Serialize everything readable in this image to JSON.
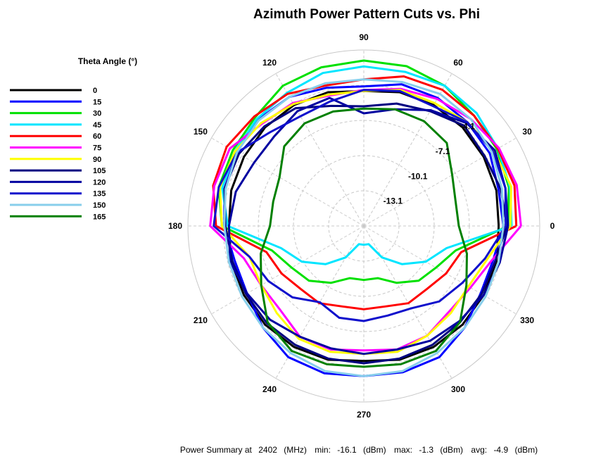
{
  "chart_data": {
    "type": "polar-line",
    "title": "Azimuth Power Pattern Cuts vs. Phi",
    "angle_unit": "degrees",
    "angle_ticks": [
      0,
      30,
      60,
      90,
      120,
      150,
      180,
      210,
      240,
      270,
      300,
      330
    ],
    "angle_tick_labels": [
      "0",
      "30",
      "60",
      "90",
      "120",
      "150",
      "180",
      "210",
      "240",
      "270",
      "300",
      "330"
    ],
    "radial_min_dbm": -16.1,
    "radial_max_dbm": -1.1,
    "radial_ticks": [
      -13.1,
      -10.1,
      -7.1,
      -4.1
    ],
    "radial_tick_labels": [
      "-13.1",
      "-10.1",
      "-7.1",
      "-4.1"
    ],
    "legend_title": "Theta Angle (°)",
    "legend_position": "left",
    "phi": [
      0,
      15,
      30,
      45,
      60,
      75,
      90,
      105,
      120,
      135,
      150,
      165,
      180,
      195,
      210,
      225,
      240,
      255,
      270,
      285,
      300,
      315,
      330,
      345
    ],
    "series": [
      {
        "name": "0",
        "color": "#000000",
        "values": [
          -4.6,
          -4.4,
          -4.3,
          -4.2,
          -4.2,
          -4.3,
          -4.6,
          -4.3,
          -4.2,
          -4.2,
          -4.3,
          -4.4,
          -4.6,
          -4.4,
          -4.3,
          -4.2,
          -4.2,
          -4.3,
          -4.6,
          -4.3,
          -4.2,
          -4.2,
          -4.3,
          -4.4
        ]
      },
      {
        "name": "15",
        "color": "#0000ff",
        "values": [
          -4.2,
          -4.2,
          -3.7,
          -3.6,
          -3.5,
          -3.6,
          -4.2,
          -3.9,
          -3.4,
          -3.3,
          -3.6,
          -3.8,
          -4.2,
          -4.7,
          -4.6,
          -3.9,
          -3.2,
          -3.1,
          -3.3,
          -3.2,
          -3.2,
          -3.9,
          -4.6,
          -4.7
        ]
      },
      {
        "name": "30",
        "color": "#00e000",
        "values": [
          -3.8,
          -3.3,
          -3.0,
          -2.8,
          -2.3,
          -2.0,
          -2.0,
          -2.1,
          -2.3,
          -3.0,
          -3.2,
          -3.3,
          -4.0,
          -8.0,
          -9.0,
          -9.5,
          -10.5,
          -11.5,
          -11.5,
          -11.5,
          -10.5,
          -9.5,
          -9.0,
          -8.0
        ]
      },
      {
        "name": "45",
        "color": "#00e5ff",
        "values": [
          -3.5,
          -3.2,
          -2.9,
          -2.5,
          -2.3,
          -2.5,
          -2.5,
          -2.6,
          -3.0,
          -3.2,
          -3.4,
          -3.6,
          -4.5,
          -8.8,
          -10.0,
          -11.5,
          -13.0,
          -14.5,
          -14.5,
          -14.5,
          -13.0,
          -11.5,
          -10.0,
          -8.8
        ]
      },
      {
        "name": "60",
        "color": "#ff0000",
        "values": [
          -3.1,
          -2.8,
          -2.9,
          -2.8,
          -2.7,
          -2.9,
          -3.6,
          -3.7,
          -3.1,
          -2.9,
          -2.6,
          -2.8,
          -3.5,
          -7.5,
          -8.0,
          -8.5,
          -8.5,
          -9.0,
          -9.0,
          -9.0,
          -8.5,
          -8.5,
          -8.0,
          -7.5
        ]
      },
      {
        "name": "75",
        "color": "#ff00ff",
        "values": [
          -2.7,
          -2.6,
          -2.8,
          -3.2,
          -3.6,
          -4.0,
          -4.5,
          -4.6,
          -4.0,
          -3.8,
          -2.9,
          -2.9,
          -3.0,
          -5.5,
          -6.0,
          -6.0,
          -5.2,
          -5.2,
          -5.5,
          -5.2,
          -5.3,
          -5.8,
          -5.6,
          -4.8
        ]
      },
      {
        "name": "90",
        "color": "#ffff00",
        "values": [
          -3.6,
          -3.1,
          -3.3,
          -3.6,
          -4.0,
          -4.1,
          -4.6,
          -4.5,
          -4.1,
          -3.7,
          -3.4,
          -3.4,
          -4.0,
          -6.0,
          -6.0,
          -5.6,
          -5.0,
          -5.0,
          -5.2,
          -5.0,
          -5.3,
          -5.6,
          -5.8,
          -5.2
        ]
      },
      {
        "name": "105",
        "color": "#000080",
        "values": [
          -3.9,
          -4.0,
          -4.2,
          -4.0,
          -4.8,
          -5.3,
          -5.9,
          -5.5,
          -4.5,
          -4.1,
          -3.8,
          -3.8,
          -4.3,
          -4.5,
          -4.5,
          -4.4,
          -4.4,
          -4.4,
          -4.4,
          -4.4,
          -4.4,
          -4.5,
          -4.5,
          -4.5
        ]
      },
      {
        "name": "120",
        "color": "#0000a0",
        "values": [
          -3.8,
          -3.6,
          -3.2,
          -3.7,
          -4.7,
          -5.8,
          -6.5,
          -4.8,
          -4.8,
          -5.3,
          -5.3,
          -4.8,
          -4.6,
          -4.3,
          -4.6,
          -4.8,
          -5.2,
          -5.3,
          -5.2,
          -5.2,
          -4.8,
          -4.6,
          -4.3,
          -4.1
        ]
      },
      {
        "name": "135",
        "color": "#1010cc",
        "values": [
          -4.0,
          -3.6,
          -3.4,
          -3.6,
          -4.3,
          -4.2,
          -4.5,
          -5.1,
          -5.3,
          -4.8,
          -3.6,
          -3.3,
          -3.3,
          -6.0,
          -6.7,
          -7.5,
          -8.6,
          -8.0,
          -8.0,
          -8.2,
          -8.0,
          -7.0,
          -6.4,
          -5.4
        ]
      },
      {
        "name": "150",
        "color": "#87ceeb",
        "values": [
          -4.2,
          -3.9,
          -3.5,
          -3.2,
          -3.1,
          -3.4,
          -3.6,
          -3.5,
          -3.4,
          -3.4,
          -3.6,
          -3.9,
          -4.2,
          -4.2,
          -4.1,
          -3.9,
          -3.6,
          -3.3,
          -3.3,
          -3.3,
          -3.6,
          -3.9,
          -4.1,
          -4.2
        ]
      },
      {
        "name": "165",
        "color": "#008000",
        "values": [
          -8.0,
          -8.0,
          -7.4,
          -6.1,
          -5.8,
          -5.8,
          -6.1,
          -6.0,
          -6.0,
          -6.5,
          -7.8,
          -8.1,
          -8.1,
          -7.0,
          -6.0,
          -4.5,
          -3.8,
          -3.9,
          -4.1,
          -3.9,
          -3.8,
          -4.5,
          -6.0,
          -7.0
        ]
      }
    ],
    "summary": {
      "prefix": "Power Summary at",
      "freq_value": "2402",
      "freq_unit": "(MHz)",
      "min_label": "min:",
      "min_value": "-16.1",
      "min_unit": "(dBm)",
      "max_label": "max:",
      "max_value": "-1.3",
      "max_unit": "(dBm)",
      "avg_label": "avg:",
      "avg_value": "-4.9",
      "avg_unit": "(dBm)"
    }
  }
}
